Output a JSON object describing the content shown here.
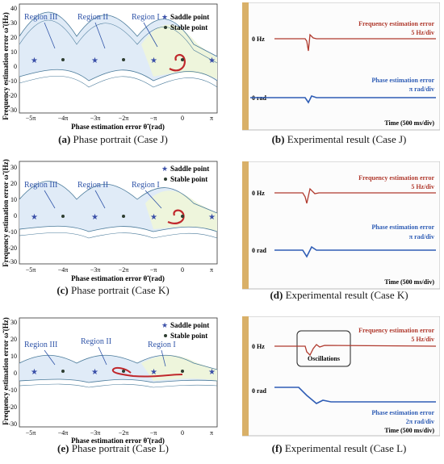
{
  "figure": {
    "panels": [
      {
        "id": "a",
        "kind": "phase",
        "caption_letter": "(a)",
        "caption_text": "Phase portrait (Case J)",
        "ylabel": "Frequency estimation error ω̃ (Hz)",
        "xlabel": "Phase estimation error θ̃ (rad)",
        "yticks": [
          "40",
          "30",
          "20",
          "10",
          "0",
          "-10",
          "-20",
          "-30"
        ],
        "xticks": [
          "−5π",
          "−4π",
          "−3π",
          "−2π",
          "−π",
          "0",
          "π"
        ],
        "region_labels": [
          "Region III",
          "Region II",
          "Region I"
        ],
        "legend": [
          "Saddle point",
          "Stable point"
        ]
      },
      {
        "id": "b",
        "kind": "exp",
        "caption_letter": "(b)",
        "caption_text": "Experimental result (Case J)",
        "freq_label": "0 Hz",
        "phase_label": "0 rad",
        "freq_title": "Frequency estimation error",
        "freq_scale": "5 Hz/div",
        "phase_title": "Phase estimation error",
        "phase_scale": "π  rad/div",
        "time_label": "Time (500 ms/div)"
      },
      {
        "id": "c",
        "kind": "phase",
        "caption_letter": "(c)",
        "caption_text": "Phase portrait (Case K)",
        "ylabel": "Frequency estimation error ω̃ (Hz)",
        "xlabel": "Phase estimation error θ̃ (rad)",
        "yticks": [
          "30",
          "20",
          "10",
          "0",
          "-10",
          "-20",
          "-30"
        ],
        "xticks": [
          "−5π",
          "−4π",
          "−3π",
          "−2π",
          "−π",
          "0",
          "π"
        ],
        "region_labels": [
          "Region III",
          "Region II",
          "Region I"
        ],
        "legend": [
          "Saddle point",
          "Stable point"
        ]
      },
      {
        "id": "d",
        "kind": "exp",
        "caption_letter": "(d)",
        "caption_text": "Experimental result (Case K)",
        "freq_label": "0 Hz",
        "phase_label": "0 rad",
        "freq_title": "Frequency estimation error",
        "freq_scale": "5 Hz/div",
        "phase_title": "Phase estimation error",
        "phase_scale": "π rad/div",
        "time_label": "Time (500 ms/div)"
      },
      {
        "id": "e",
        "kind": "phase",
        "caption_letter": "(e)",
        "caption_text": "Phase portrait (Case L)",
        "ylabel": "Frequency estimation error ω̃ (Hz)",
        "xlabel": "Phase estimation error θ̃ (rad)",
        "yticks": [
          "30",
          "20",
          "10",
          "0",
          "-10",
          "-20",
          "-30"
        ],
        "xticks": [
          "−5π",
          "−4π",
          "−3π",
          "−2π",
          "−π",
          "0",
          "π"
        ],
        "region_labels": [
          "Region III",
          "Region II",
          "Region I"
        ],
        "legend": [
          "Saddle point",
          "Stable point"
        ]
      },
      {
        "id": "f",
        "kind": "exp",
        "caption_letter": "(f)",
        "caption_text": "Experimental result (Case L)",
        "freq_label": "0 Hz",
        "phase_label": "0 rad",
        "freq_title": "Frequency estimation error",
        "freq_scale": "5 Hz/div",
        "phase_title": "Phase estimation error",
        "phase_scale": "2π  rad/div",
        "time_label": "Time (500 ms/div)",
        "annotation": "Oscillations"
      }
    ],
    "colors": {
      "region1_fill": "#eef5dc",
      "region2_fill": "#dde9f6",
      "region3_fill": "#eef2ee",
      "band_line": "#4a7a9a",
      "trajectory": "#c0282c",
      "saddle": "#3a4fa8",
      "stable": "#2e3d30",
      "region_label": "#2f54a8",
      "scope_freq": "#b03a2e",
      "scope_phase": "#2f5db5",
      "scope_border": "#c8a050"
    }
  }
}
